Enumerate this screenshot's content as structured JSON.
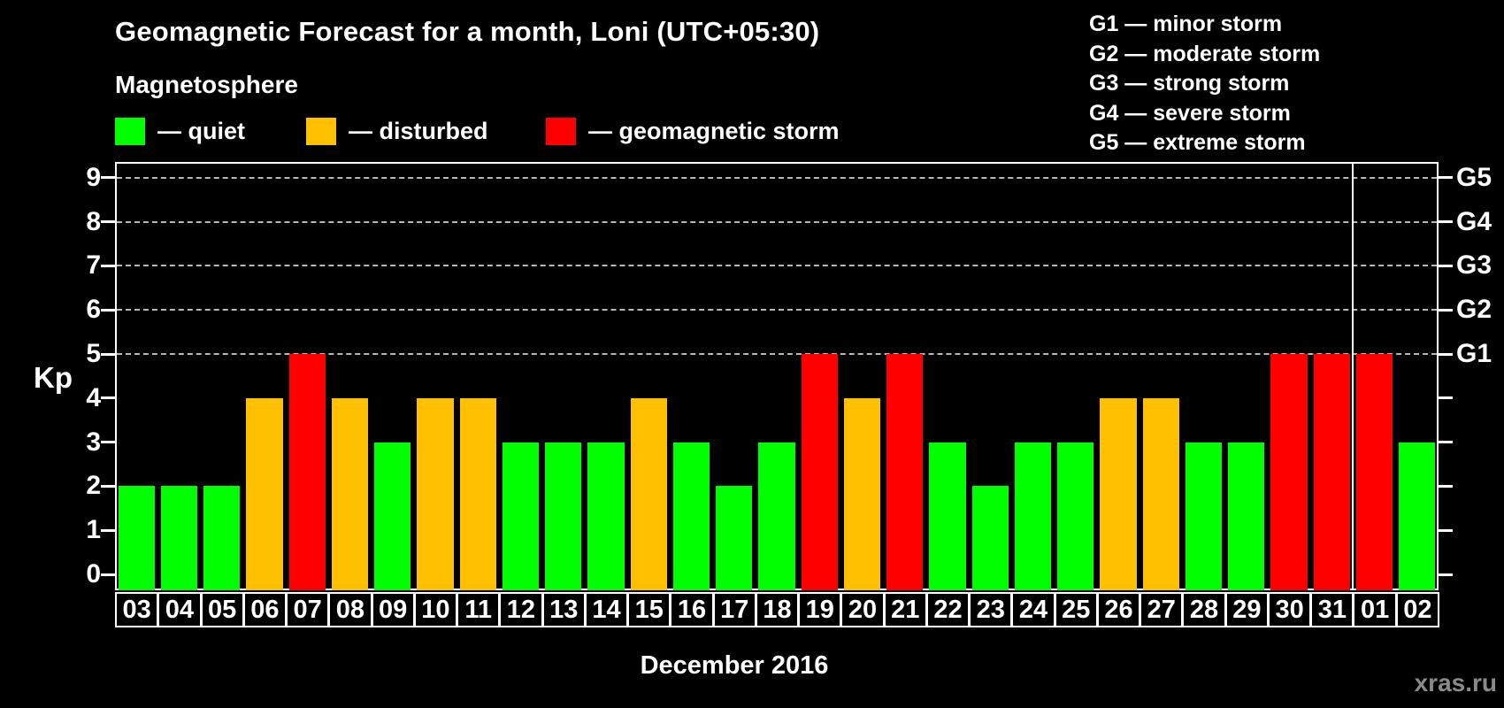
{
  "header": {
    "title": "Geomagnetic Forecast for a month, Loni (UTC+05:30)",
    "subtitle": "Magnetosphere"
  },
  "legend": {
    "items": [
      {
        "label": "— quiet",
        "status": "quiet"
      },
      {
        "label": "— disturbed",
        "status": "disturbed"
      },
      {
        "label": "— geomagnetic storm",
        "status": "storm"
      }
    ]
  },
  "storm_scale_legend": {
    "lines": [
      "G1 — minor storm",
      "G2 — moderate storm",
      "G3 — strong storm",
      "G4 — severe storm",
      "G5 — extreme storm"
    ]
  },
  "y_axis": {
    "label": "Kp",
    "ticks": [
      0,
      1,
      2,
      3,
      4,
      5,
      6,
      7,
      8,
      9
    ]
  },
  "right_axis": {
    "labels": [
      {
        "text": "G1",
        "kp": 5
      },
      {
        "text": "G2",
        "kp": 6
      },
      {
        "text": "G3",
        "kp": 7
      },
      {
        "text": "G4",
        "kp": 8
      },
      {
        "text": "G5",
        "kp": 9
      }
    ]
  },
  "footer": {
    "month_label": "December 2016",
    "watermark": "xras.ru"
  },
  "colors": {
    "background": "#000000",
    "text": "#ffffff",
    "quiet": "#00ff00",
    "disturbed": "#ffc000",
    "storm": "#ff0000",
    "grid": "#b8b8b8",
    "axis": "#ffffff",
    "watermark": "#8a8a8a"
  },
  "chart_data": {
    "type": "bar",
    "title": "Geomagnetic Forecast for a month, Loni (UTC+05:30)",
    "xlabel": "December 2016",
    "ylabel": "Kp",
    "ylim": [
      0,
      9
    ],
    "grid": "dashed horizontal at Kp 5-9",
    "gridlines_at": [
      5,
      6,
      7,
      8,
      9
    ],
    "legend_position": "top-left",
    "categories": [
      "03",
      "04",
      "05",
      "06",
      "07",
      "08",
      "09",
      "10",
      "11",
      "12",
      "13",
      "14",
      "15",
      "16",
      "17",
      "18",
      "19",
      "20",
      "21",
      "22",
      "23",
      "24",
      "25",
      "26",
      "27",
      "28",
      "29",
      "30",
      "31",
      "01",
      "02"
    ],
    "values": [
      2,
      2,
      2,
      4,
      5,
      4,
      3,
      4,
      4,
      3,
      3,
      3,
      4,
      3,
      2,
      3,
      5,
      4,
      5,
      3,
      2,
      3,
      3,
      4,
      4,
      3,
      3,
      5,
      5,
      5,
      3
    ],
    "statuses": [
      "quiet",
      "quiet",
      "quiet",
      "disturbed",
      "storm",
      "disturbed",
      "quiet",
      "disturbed",
      "disturbed",
      "quiet",
      "quiet",
      "quiet",
      "disturbed",
      "quiet",
      "quiet",
      "quiet",
      "storm",
      "disturbed",
      "storm",
      "quiet",
      "quiet",
      "quiet",
      "quiet",
      "disturbed",
      "disturbed",
      "quiet",
      "quiet",
      "storm",
      "storm",
      "storm",
      "quiet"
    ],
    "month_boundary_before_index": 29
  }
}
